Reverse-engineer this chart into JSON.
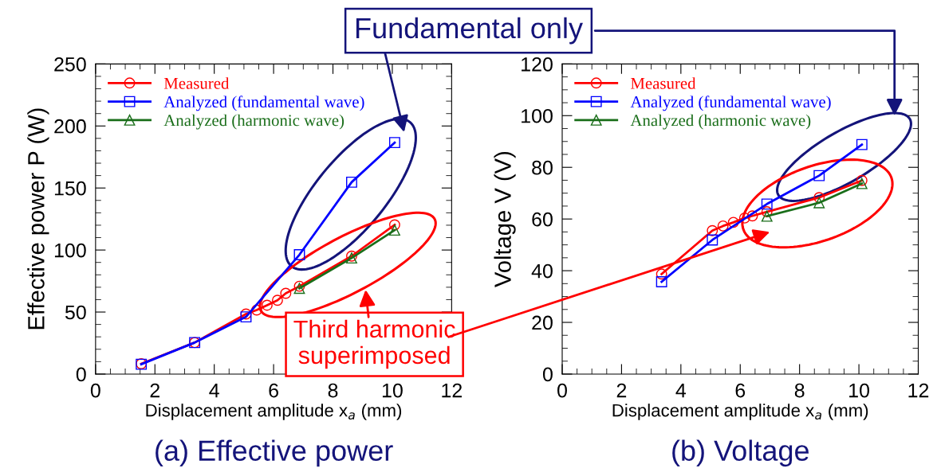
{
  "chart_data": [
    {
      "type": "line",
      "title": "(a) Effective power",
      "xlabel": "Displacement amplitude x$_{a}$ (mm)",
      "ylabel": "Effective power P (W)",
      "xlim": [
        0,
        12
      ],
      "xticks": [
        0,
        {
          "value": 0.5,
          "label": null
        },
        {
          "value": 1,
          "label": null
        },
        {
          "value": 1.5,
          "label": null
        },
        2,
        {
          "value": 2.5,
          "label": null
        },
        {
          "value": 3,
          "label": null
        },
        {
          "value": 3.5,
          "label": null
        },
        4,
        {
          "value": 4.5,
          "label": null
        },
        {
          "value": 5,
          "label": null
        },
        {
          "value": 5.5,
          "label": null
        },
        6,
        {
          "value": 6.5,
          "label": null
        },
        {
          "value": 7,
          "label": null
        },
        {
          "value": 7.5,
          "label": null
        },
        8,
        {
          "value": 8.5,
          "label": null
        },
        {
          "value": 9,
          "label": null
        },
        {
          "value": 9.5,
          "label": null
        },
        10,
        {
          "value": 10.5,
          "label": null
        },
        {
          "value": 11,
          "label": null
        },
        {
          "value": 11.5,
          "label": null
        },
        12
      ],
      "ylim": [
        0,
        250
      ],
      "yticks": [
        0,
        {
          "value": 10,
          "label": null
        },
        {
          "value": 20,
          "label": null
        },
        {
          "value": 30,
          "label": null
        },
        {
          "value": 40,
          "label": null
        },
        50,
        {
          "value": 60,
          "label": null
        },
        {
          "value": 70,
          "label": null
        },
        {
          "value": 80,
          "label": null
        },
        {
          "value": 90,
          "label": null
        },
        100,
        {
          "value": 110,
          "label": null
        },
        {
          "value": 120,
          "label": null
        },
        {
          "value": 130,
          "label": null
        },
        {
          "value": 140,
          "label": null
        },
        150,
        {
          "value": 160,
          "label": null
        },
        {
          "value": 170,
          "label": null
        },
        {
          "value": 180,
          "label": null
        },
        {
          "value": 190,
          "label": null
        },
        200,
        {
          "value": 210,
          "label": null
        },
        {
          "value": 220,
          "label": null
        },
        {
          "value": 230,
          "label": null
        },
        {
          "value": 240,
          "label": null
        },
        250
      ],
      "legend": "top left",
      "line_style": "solid",
      "series": [
        {
          "name": "Measured",
          "color": "#ff0000",
          "marker": "circle",
          "x": [
            1.54,
            3.34,
            5.07,
            5.43,
            5.78,
            6.13,
            6.41,
            6.87,
            8.63,
            10.08
          ],
          "values": [
            8.3,
            25.4,
            48.4,
            51.6,
            55.5,
            59.5,
            65.1,
            70.8,
            95.1,
            120.3
          ]
        },
        {
          "name": "Analyzed (fundamental wave)",
          "color": "#0000ff",
          "marker": "square",
          "x": [
            1.54,
            3.34,
            5.07,
            6.87,
            8.63,
            10.08
          ],
          "values": [
            7.9,
            25.4,
            46.1,
            96.2,
            154.7,
            186.6
          ]
        },
        {
          "name": "Analyzed (harmonic wave)",
          "color": "#1a6e1a",
          "marker": "triangle",
          "x": [
            6.87,
            8.63,
            10.08
          ],
          "values": [
            69.1,
            93.6,
            116.0
          ]
        }
      ],
      "annotations": [
        "Fundamental only",
        "Third harmonic\nsuperimposed"
      ]
    },
    {
      "type": "line",
      "title": "(b) Voltage",
      "xlabel": "Displacement amplitude x$_{a}$ (mm)",
      "ylabel": "Voltage V (V)",
      "xlim": [
        0,
        12
      ],
      "xticks": [
        0,
        {
          "value": 0.5,
          "label": null
        },
        {
          "value": 1,
          "label": null
        },
        {
          "value": 1.5,
          "label": null
        },
        2,
        {
          "value": 2.5,
          "label": null
        },
        {
          "value": 3,
          "label": null
        },
        {
          "value": 3.5,
          "label": null
        },
        4,
        {
          "value": 4.5,
          "label": null
        },
        {
          "value": 5,
          "label": null
        },
        {
          "value": 5.5,
          "label": null
        },
        6,
        {
          "value": 6.5,
          "label": null
        },
        {
          "value": 7,
          "label": null
        },
        {
          "value": 7.5,
          "label": null
        },
        8,
        {
          "value": 8.5,
          "label": null
        },
        {
          "value": 9,
          "label": null
        },
        {
          "value": 9.5,
          "label": null
        },
        10,
        {
          "value": 10.5,
          "label": null
        },
        {
          "value": 11,
          "label": null
        },
        {
          "value": 11.5,
          "label": null
        },
        12
      ],
      "ylim": [
        0,
        120
      ],
      "yticks": [
        0,
        {
          "value": 5,
          "label": null
        },
        {
          "value": 10,
          "label": null
        },
        {
          "value": 15,
          "label": null
        },
        20,
        {
          "value": 25,
          "label": null
        },
        {
          "value": 30,
          "label": null
        },
        {
          "value": 35,
          "label": null
        },
        40,
        {
          "value": 45,
          "label": null
        },
        {
          "value": 50,
          "label": null
        },
        {
          "value": 55,
          "label": null
        },
        60,
        {
          "value": 65,
          "label": null
        },
        {
          "value": 70,
          "label": null
        },
        {
          "value": 75,
          "label": null
        },
        80,
        {
          "value": 85,
          "label": null
        },
        {
          "value": 90,
          "label": null
        },
        {
          "value": 95,
          "label": null
        },
        100,
        {
          "value": 105,
          "label": null
        },
        {
          "value": 110,
          "label": null
        },
        {
          "value": 115,
          "label": null
        },
        120
      ],
      "legend": "top left",
      "line_style": "solid",
      "series": [
        {
          "name": "Measured",
          "color": "#ff0000",
          "marker": "circle",
          "x": [
            3.35,
            5.06,
            5.42,
            5.77,
            6.15,
            6.41,
            6.9,
            8.66,
            10.1
          ],
          "values": [
            38.7,
            55.5,
            57.3,
            58.7,
            60.4,
            61.2,
            62.8,
            68.3,
            74.9
          ]
        },
        {
          "name": "Analyzed (fundamental wave)",
          "color": "#0000ff",
          "marker": "square",
          "x": [
            3.35,
            5.06,
            6.9,
            8.66,
            10.1
          ],
          "values": [
            35.7,
            51.9,
            65.8,
            76.8,
            88.8
          ]
        },
        {
          "name": "Analyzed (harmonic wave)",
          "color": "#1a6e1a",
          "marker": "triangle",
          "x": [
            6.9,
            8.66,
            10.1
          ],
          "values": [
            61.1,
            66.3,
            73.7
          ]
        }
      ]
    }
  ]
}
